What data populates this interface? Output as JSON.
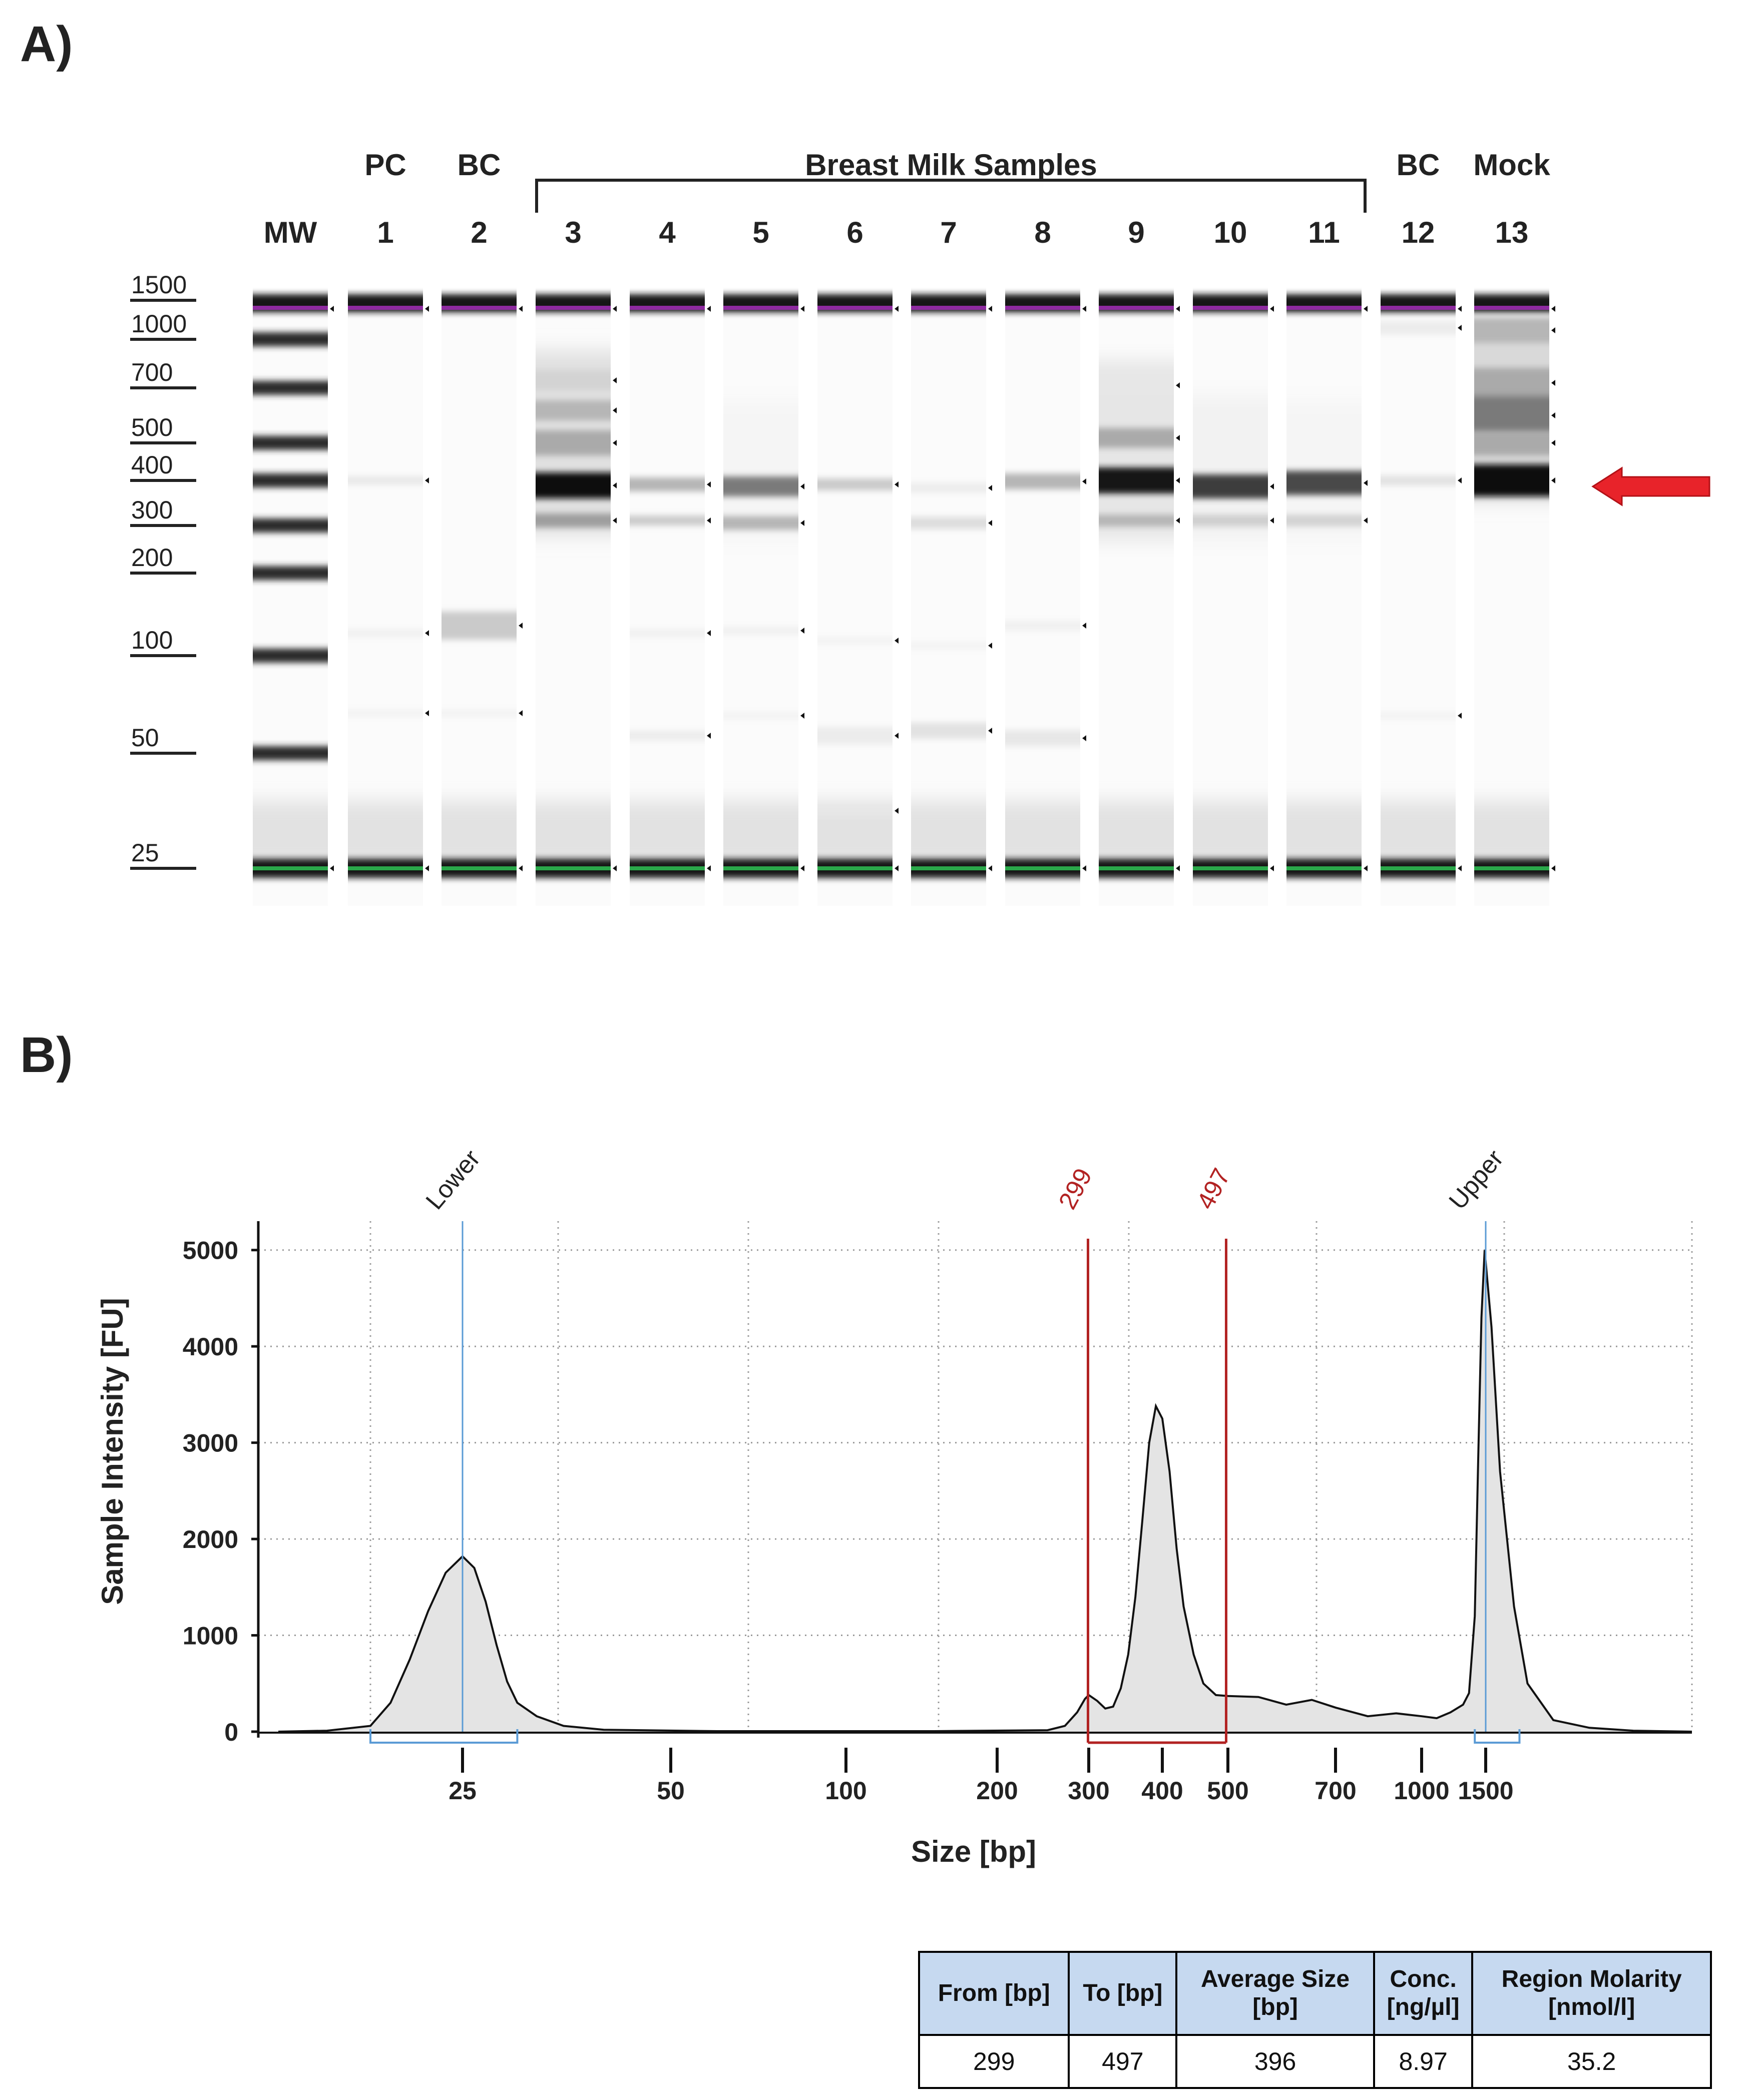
{
  "panel_a": {
    "label": "A)",
    "lane_numbers": [
      "MW",
      "1",
      "2",
      "3",
      "4",
      "5",
      "6",
      "7",
      "8",
      "9",
      "10",
      "11",
      "12",
      "13"
    ],
    "lane_groups": {
      "1": "PC",
      "2": "BC",
      "12": "BC",
      "13": "Mock"
    },
    "bracket_label": "Breast Milk Samples",
    "ladder_bp": [
      "1500",
      "1000",
      "700",
      "500",
      "400",
      "300",
      "200",
      "100",
      "50",
      "25"
    ],
    "colors": {
      "upper_marker": "#8e2aa0",
      "lower_marker": "#2aa84a",
      "arrow": "#e8232a"
    }
  },
  "panel_b": {
    "label": "B)",
    "colors": {
      "marker_line": "#5b9bd5",
      "region_line": "#b22222",
      "trace_fill": "#e4e4e4"
    }
  },
  "chart_data": {
    "type": "area",
    "xlabel": "Size [bp]",
    "ylabel": "Sample Intensity [FU]",
    "x_scale": "log",
    "x_ticks": [
      25,
      50,
      100,
      200,
      300,
      400,
      500,
      700,
      1000,
      1500
    ],
    "y_ticks": [
      0,
      1000,
      2000,
      3000,
      4000,
      5000
    ],
    "ylim": [
      0,
      5300
    ],
    "grid": true,
    "markers": [
      {
        "label": "Lower",
        "bp": 25,
        "peak_fu": 1820
      },
      {
        "label": "Upper",
        "bp": 1500,
        "peak_fu": 5000
      }
    ],
    "region": {
      "from_label": "299",
      "to_label": "497",
      "from_bp": 299,
      "to_bp": 497
    },
    "trace": [
      [
        16,
        0
      ],
      [
        18,
        10
      ],
      [
        20,
        60
      ],
      [
        21,
        300
      ],
      [
        22,
        750
      ],
      [
        23,
        1250
      ],
      [
        24,
        1650
      ],
      [
        25,
        1820
      ],
      [
        26,
        1700
      ],
      [
        27,
        1350
      ],
      [
        28,
        900
      ],
      [
        29,
        520
      ],
      [
        30,
        300
      ],
      [
        32,
        160
      ],
      [
        35,
        60
      ],
      [
        40,
        20
      ],
      [
        60,
        5
      ],
      [
        150,
        5
      ],
      [
        250,
        15
      ],
      [
        270,
        60
      ],
      [
        285,
        200
      ],
      [
        295,
        340
      ],
      [
        300,
        380
      ],
      [
        310,
        320
      ],
      [
        320,
        240
      ],
      [
        330,
        260
      ],
      [
        340,
        450
      ],
      [
        350,
        800
      ],
      [
        360,
        1400
      ],
      [
        370,
        2200
      ],
      [
        380,
        3000
      ],
      [
        390,
        3380
      ],
      [
        400,
        3250
      ],
      [
        410,
        2700
      ],
      [
        420,
        1900
      ],
      [
        430,
        1300
      ],
      [
        445,
        800
      ],
      [
        460,
        500
      ],
      [
        480,
        380
      ],
      [
        500,
        370
      ],
      [
        550,
        360
      ],
      [
        600,
        280
      ],
      [
        650,
        330
      ],
      [
        700,
        250
      ],
      [
        800,
        160
      ],
      [
        900,
        190
      ],
      [
        1000,
        160
      ],
      [
        1100,
        140
      ],
      [
        1200,
        200
      ],
      [
        1300,
        280
      ],
      [
        1350,
        400
      ],
      [
        1400,
        1200
      ],
      [
        1430,
        2800
      ],
      [
        1460,
        4300
      ],
      [
        1490,
        5000
      ],
      [
        1520,
        4200
      ],
      [
        1550,
        2700
      ],
      [
        1600,
        1300
      ],
      [
        1650,
        500
      ],
      [
        1750,
        120
      ],
      [
        1900,
        40
      ],
      [
        2100,
        10
      ],
      [
        2400,
        0
      ]
    ],
    "table": {
      "headers": [
        [
          "From [bp]"
        ],
        [
          "To [bp]"
        ],
        [
          "Average Size",
          "[bp]"
        ],
        [
          "Conc.",
          "[ng/µl]"
        ],
        [
          "Region Molarity",
          "[nmol/l]"
        ]
      ],
      "rows": [
        [
          "299",
          "497",
          "396",
          "8.97",
          "35.2"
        ]
      ]
    }
  }
}
